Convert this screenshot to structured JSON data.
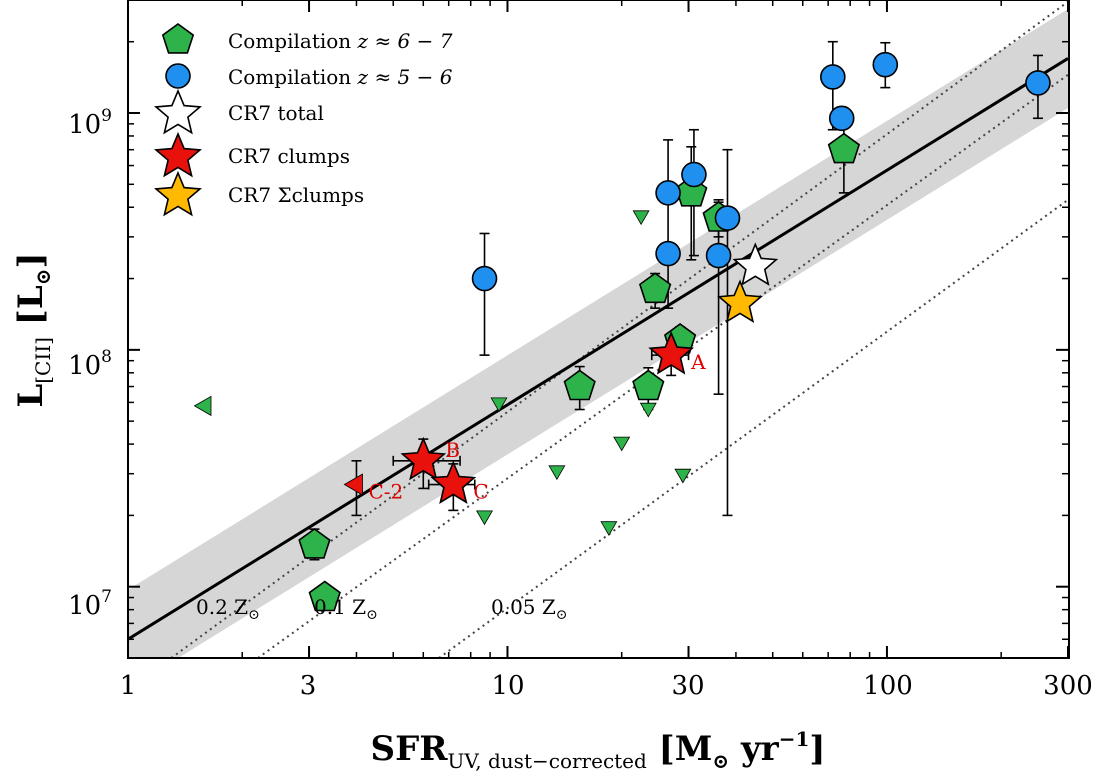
{
  "chart_data": {
    "type": "scatter",
    "title": "",
    "xlabel": "SFR",
    "xlabel_sub": "UV, dust−corrected",
    "xlabel_unit": "[M",
    "xlabel_unit_sun": "⊙",
    "xlabel_unit_end": " yr",
    "xlabel_unit_exp": "−1",
    "xlabel_close": "]",
    "ylabel": "L",
    "ylabel_sub": "[CII]",
    "ylabel_unit": "[L",
    "ylabel_unit_sun": "⊙",
    "ylabel_close": "]",
    "xscale": "log",
    "yscale": "log",
    "xlim": [
      1,
      300
    ],
    "ylim": [
      5000000,
      3000000000
    ],
    "x_ticks": [
      1,
      3,
      10,
      30,
      100,
      300
    ],
    "x_tick_labels": [
      "1",
      "3",
      "10",
      "30",
      "100",
      "300"
    ],
    "y_ticks": [
      10000000,
      100000000,
      1000000000
    ],
    "y_tick_labels": [
      {
        "base": "10",
        "exp": "7"
      },
      {
        "base": "10",
        "exp": "8"
      },
      {
        "base": "10",
        "exp": "9"
      }
    ],
    "grid": false,
    "legend_position": "top-left",
    "colors": {
      "green": "#2db34a",
      "blue": "#1f8ff0",
      "red": "#e8110b",
      "orange": "#ffb900",
      "white": "#ffffff",
      "band": "#d6d6d6",
      "line": "#000000"
    },
    "legend": [
      {
        "marker": "pentagon",
        "color": "#2db34a",
        "label": "Compilation ",
        "math": "z ≈ 6 − 7"
      },
      {
        "marker": "circle",
        "color": "#1f8ff0",
        "label": "Compilation ",
        "math": "z ≈ 5 − 6"
      },
      {
        "marker": "star",
        "color": "#ffffff",
        "label": "CR7 total",
        "math": ""
      },
      {
        "marker": "star",
        "color": "#e8110b",
        "label": "CR7 clumps",
        "math": ""
      },
      {
        "marker": "star",
        "color": "#ffb900",
        "label": "CR7 Σclumps",
        "math": ""
      }
    ],
    "relation": {
      "x": [
        1,
        300
      ],
      "y": [
        6000000,
        1700000000
      ],
      "band_x": [
        1,
        300
      ],
      "band_lower": [
        3700000,
        1050000000
      ],
      "band_upper": [
        9700000,
        2750000000
      ]
    },
    "metallicity_lines": [
      {
        "label": "0.2 Z",
        "label_sun": "⊙",
        "x": [
          1.3,
          300
        ],
        "y": [
          5000000,
          2950000000
        ]
      },
      {
        "label": "0.1 Z",
        "label_sun": "⊙",
        "x": [
          2.2,
          300
        ],
        "y": [
          5000000,
          1450000000
        ]
      },
      {
        "label": "0.05 Z",
        "label_sun": "⊙",
        "x": [
          6.6,
          300
        ],
        "y": [
          5000000,
          430000000
        ]
      }
    ],
    "series": [
      {
        "name": "Compilation z ≈ 6 − 7",
        "marker": "pentagon",
        "points": [
          {
            "x": 3.1,
            "y": 15000000,
            "ylo": 13000000,
            "yhi": 17500000
          },
          {
            "x": 3.3,
            "y": 9000000
          },
          {
            "x": 15.5,
            "y": 70000000,
            "ylo": 56000000,
            "yhi": 85000000
          },
          {
            "x": 23.5,
            "y": 70000000,
            "ylo": 56000000,
            "yhi": 84000000
          },
          {
            "x": 24.5,
            "y": 180000000,
            "ylo": 150000000,
            "yhi": 210000000
          },
          {
            "x": 28.5,
            "y": 110000000,
            "ylo": 95000000,
            "yhi": 125000000
          },
          {
            "x": 30.5,
            "y": 460000000,
            "ylo": 240000000,
            "yhi": 720000000
          },
          {
            "x": 36,
            "y": 360000000,
            "ylo": 300000000,
            "yhi": 420000000
          },
          {
            "x": 77,
            "y": 700000000,
            "ylo": 460000000,
            "yhi": 950000000
          }
        ]
      },
      {
        "name": "Compilation z ≈ 5 − 6",
        "marker": "circle",
        "points": [
          {
            "x": 8.7,
            "y": 200000000,
            "ylo": 95000000,
            "yhi": 310000000
          },
          {
            "x": 26.5,
            "y": 255000000
          },
          {
            "x": 26.5,
            "y": 460000000,
            "ylo": 150000000,
            "yhi": 770000000
          },
          {
            "x": 31,
            "y": 550000000,
            "ylo": 250000000,
            "yhi": 850000000
          },
          {
            "x": 36,
            "y": 250000000,
            "ylo": 65000000,
            "yhi": 430000000
          },
          {
            "x": 38,
            "y": 360000000,
            "ylo": 20000000,
            "yhi": 700000000
          },
          {
            "x": 72,
            "y": 1420000000,
            "ylo": 850000000,
            "yhi": 2000000000
          },
          {
            "x": 76,
            "y": 950000000
          },
          {
            "x": 99,
            "y": 1600000000,
            "ylo": 1280000000,
            "yhi": 1980000000
          },
          {
            "x": 250,
            "y": 1340000000,
            "ylo": 950000000,
            "yhi": 1750000000
          }
        ]
      },
      {
        "name": "upper limits",
        "marker": "triangle-down",
        "points": [
          {
            "x": 9.5,
            "y": 60000000
          },
          {
            "x": 8.7,
            "y": 20000000
          },
          {
            "x": 13.5,
            "y": 31000000
          },
          {
            "x": 18.5,
            "y": 18000000
          },
          {
            "x": 20,
            "y": 41000000
          },
          {
            "x": 22.5,
            "y": 370000000
          },
          {
            "x": 23.5,
            "y": 57000000
          },
          {
            "x": 29,
            "y": 30000000
          }
        ]
      },
      {
        "name": "lower limit",
        "marker": "triangle-left",
        "points": [
          {
            "x": 1.6,
            "y": 58000000
          }
        ]
      },
      {
        "name": "CR7 total",
        "marker": "star",
        "points": [
          {
            "x": 45,
            "y": 225000000
          }
        ]
      },
      {
        "name": "CR7 Σclumps",
        "marker": "star",
        "points": [
          {
            "x": 41,
            "y": 157000000
          }
        ]
      },
      {
        "name": "CR7 clumps",
        "marker": "star",
        "points": [
          {
            "x": 27,
            "y": 95000000,
            "ylo": 78000000,
            "yhi": 112000000,
            "xlo": 24,
            "xhi": 30,
            "label": "A"
          },
          {
            "x": 6,
            "y": 34000000,
            "ylo": 26000000,
            "yhi": 42000000,
            "xlo": 5,
            "xhi": 7.5,
            "label": "B"
          },
          {
            "x": 7.2,
            "y": 27000000,
            "ylo": 21000000,
            "yhi": 33000000,
            "xlo": 6.2,
            "xhi": 8.2,
            "label": "C"
          },
          {
            "x": 4,
            "y": 27000000,
            "ylo": 20000000,
            "yhi": 34000000,
            "label": "C-2",
            "marker": "triangle-left"
          }
        ]
      }
    ]
  }
}
